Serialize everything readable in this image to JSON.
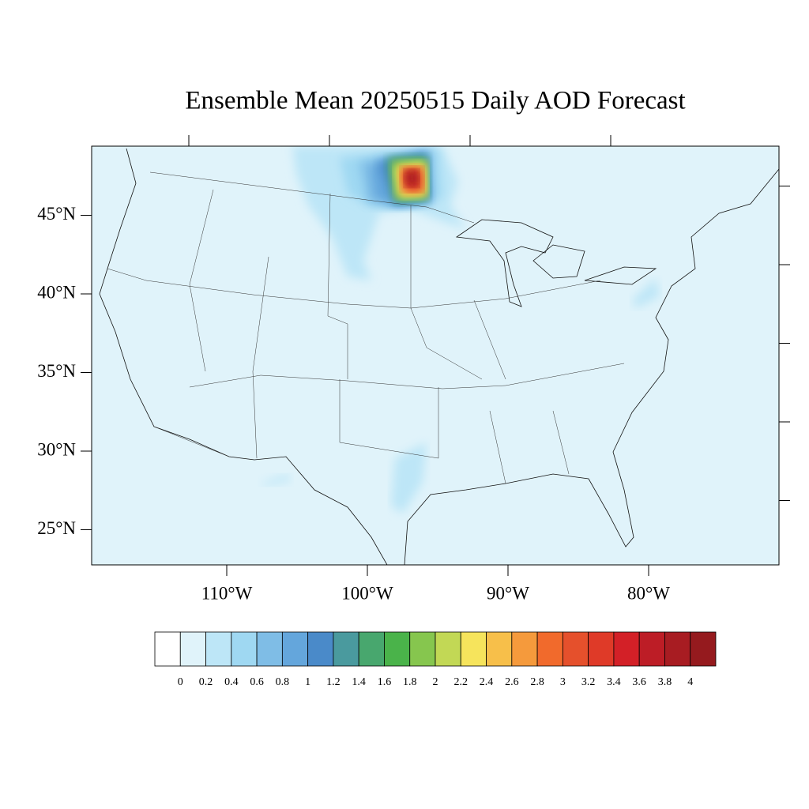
{
  "chart_data": {
    "type": "contour-map",
    "title": "Ensemble Mean 20250515 Daily AOD Forecast",
    "lonticks": [
      {
        "value": -110,
        "label": "110°W"
      },
      {
        "value": -100,
        "label": "100°W"
      },
      {
        "value": -90,
        "label": "90°W"
      },
      {
        "value": -80,
        "label": "80°W"
      }
    ],
    "latticks": [
      {
        "value": 45,
        "label": "45°N"
      },
      {
        "value": 40,
        "label": "40°N"
      },
      {
        "value": 35,
        "label": "35°N"
      },
      {
        "value": 30,
        "label": "30°N"
      },
      {
        "value": 25,
        "label": "25°N"
      }
    ],
    "levels": [
      0,
      0.2,
      0.4,
      0.6,
      0.8,
      1,
      1.2,
      1.4,
      1.6,
      1.8,
      2,
      2.2,
      2.4,
      2.6,
      2.8,
      3,
      3.2,
      3.4,
      3.6,
      3.8,
      4
    ],
    "colors": [
      "#ffffff",
      "#e0f3fa",
      "#bde6f7",
      "#9fd8f2",
      "#7fbde6",
      "#64a6dc",
      "#4a8ac9",
      "#4a9a9e",
      "#48a76e",
      "#4ab34a",
      "#86c64e",
      "#c2d855",
      "#f6e45c",
      "#f7bf4a",
      "#f59a3c",
      "#f16a2c",
      "#e5502c",
      "#df3a28",
      "#d32027",
      "#bd1d26",
      "#a81c22",
      "#951a1e"
    ]
  }
}
